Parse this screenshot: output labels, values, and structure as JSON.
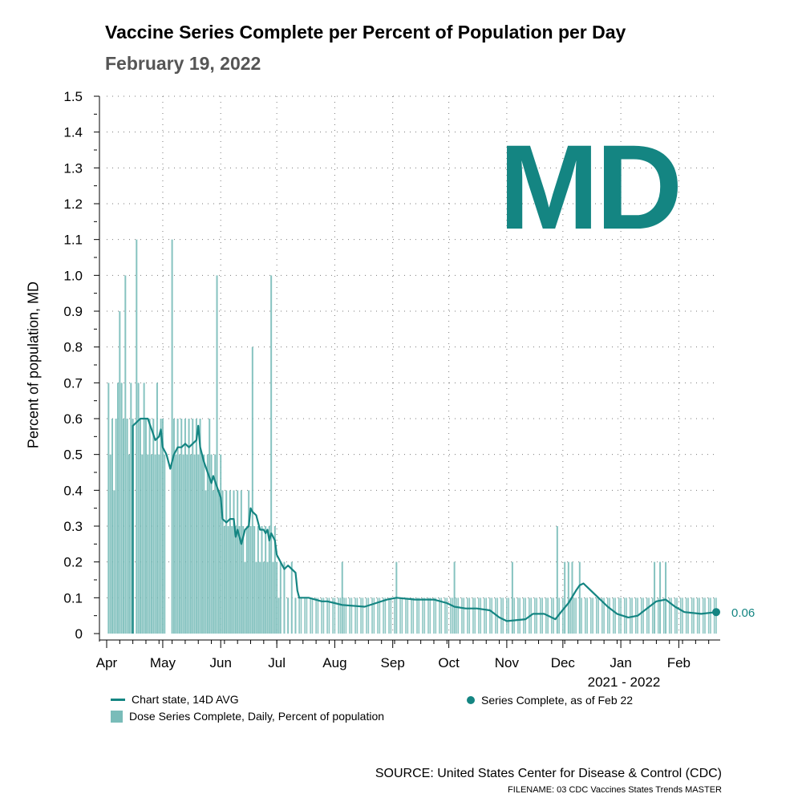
{
  "header": {
    "title": "Vaccine Series Complete per Percent of Population per Day",
    "subtitle": "February 19, 2022",
    "state": "MD"
  },
  "colors": {
    "accent": "#148582",
    "bar": "#79bcb9",
    "grid": "#7a7a7a"
  },
  "legend": {
    "avg_line": "Chart state, 14D AVG",
    "daily_bars": "Dose Series Complete, Daily, Percent of population",
    "latest_point": "Series Complete, as of Feb 22"
  },
  "footer": {
    "source": "SOURCE: United States Center for Disease & Control (CDC)",
    "filename": "FILENAME: 03 CDC Vaccines States Trends MASTER"
  },
  "chart_data": {
    "type": "bar",
    "title": "Vaccine Series Complete per Percent of Population per Day",
    "xlabel": "2021 - 2022",
    "ylabel": "Percent of population, MD",
    "ylim": [
      0,
      1.5
    ],
    "y_ticks": [
      "0",
      "0.1",
      "0.2",
      "0.3",
      "0.4",
      "0.5",
      "0.6",
      "0.7",
      "0.8",
      "0.9",
      "1.0",
      "1.1",
      "1.2",
      "1.3",
      "1.4",
      "1.5"
    ],
    "x_range_days": [
      0,
      326
    ],
    "month_ticks": [
      {
        "label": "Apr",
        "day": 0
      },
      {
        "label": "May",
        "day": 30
      },
      {
        "label": "Jun",
        "day": 61
      },
      {
        "label": "Jul",
        "day": 91
      },
      {
        "label": "Aug",
        "day": 122
      },
      {
        "label": "Sep",
        "day": 153
      },
      {
        "label": "Oct",
        "day": 183
      },
      {
        "label": "Nov",
        "day": 214
      },
      {
        "label": "Dec",
        "day": 244
      },
      {
        "label": "Jan",
        "day": 275
      },
      {
        "label": "Feb",
        "day": 306
      }
    ],
    "daily_series": {
      "name": "Dose Series Complete, Daily, Percent of population",
      "spikes": [
        {
          "day": 1,
          "value": 0.7
        },
        {
          "day": 2,
          "value": 0.5
        },
        {
          "day": 3,
          "value": 0.6
        },
        {
          "day": 4,
          "value": 0.4
        },
        {
          "day": 5,
          "value": 0.6
        },
        {
          "day": 6,
          "value": 0.7
        },
        {
          "day": 7,
          "value": 0.9
        },
        {
          "day": 8,
          "value": 0.7
        },
        {
          "day": 9,
          "value": 0.6
        },
        {
          "day": 10,
          "value": 1.0
        },
        {
          "day": 11,
          "value": 0.6
        },
        {
          "day": 12,
          "value": 0.5
        },
        {
          "day": 13,
          "value": 0.7
        },
        {
          "day": 14,
          "value": 0.6
        },
        {
          "day": 16,
          "value": 1.1
        },
        {
          "day": 17,
          "value": 0.7
        },
        {
          "day": 18,
          "value": 0.6
        },
        {
          "day": 19,
          "value": 0.5
        },
        {
          "day": 20,
          "value": 0.7
        },
        {
          "day": 21,
          "value": 0.6
        },
        {
          "day": 22,
          "value": 0.5
        },
        {
          "day": 23,
          "value": 0.6
        },
        {
          "day": 24,
          "value": 0.5
        },
        {
          "day": 25,
          "value": 0.6
        },
        {
          "day": 26,
          "value": 0.5
        },
        {
          "day": 27,
          "value": 0.7
        },
        {
          "day": 28,
          "value": 0.5
        },
        {
          "day": 29,
          "value": 0.6
        },
        {
          "day": 30,
          "value": 0.6
        },
        {
          "day": 31,
          "value": 0.5
        },
        {
          "day": 35,
          "value": 1.1
        },
        {
          "day": 36,
          "value": 0.6
        },
        {
          "day": 37,
          "value": 0.5
        },
        {
          "day": 38,
          "value": 0.6
        },
        {
          "day": 39,
          "value": 0.5
        },
        {
          "day": 40,
          "value": 0.6
        },
        {
          "day": 41,
          "value": 0.5
        },
        {
          "day": 42,
          "value": 0.6
        },
        {
          "day": 43,
          "value": 0.5
        },
        {
          "day": 44,
          "value": 0.6
        },
        {
          "day": 45,
          "value": 0.5
        },
        {
          "day": 46,
          "value": 0.6
        },
        {
          "day": 47,
          "value": 0.5
        },
        {
          "day": 48,
          "value": 0.6
        },
        {
          "day": 49,
          "value": 0.5
        },
        {
          "day": 50,
          "value": 0.6
        },
        {
          "day": 51,
          "value": 0.5
        },
        {
          "day": 52,
          "value": 0.5
        },
        {
          "day": 53,
          "value": 0.4
        },
        {
          "day": 54,
          "value": 0.5
        },
        {
          "day": 55,
          "value": 0.6
        },
        {
          "day": 56,
          "value": 0.5
        },
        {
          "day": 57,
          "value": 0.4
        },
        {
          "day": 58,
          "value": 0.5
        },
        {
          "day": 59,
          "value": 1.0
        },
        {
          "day": 60,
          "value": 0.4
        },
        {
          "day": 61,
          "value": 0.5
        },
        {
          "day": 62,
          "value": 0.4
        },
        {
          "day": 63,
          "value": 0.3
        },
        {
          "day": 64,
          "value": 0.4
        },
        {
          "day": 65,
          "value": 0.3
        },
        {
          "day": 66,
          "value": 0.4
        },
        {
          "day": 67,
          "value": 0.3
        },
        {
          "day": 68,
          "value": 0.4
        },
        {
          "day": 69,
          "value": 0.3
        },
        {
          "day": 70,
          "value": 0.4
        },
        {
          "day": 71,
          "value": 0.3
        },
        {
          "day": 72,
          "value": 0.4
        },
        {
          "day": 73,
          "value": 0.3
        },
        {
          "day": 74,
          "value": 0.2
        },
        {
          "day": 75,
          "value": 0.3
        },
        {
          "day": 76,
          "value": 0.4
        },
        {
          "day": 77,
          "value": 0.3
        },
        {
          "day": 78,
          "value": 0.8
        },
        {
          "day": 79,
          "value": 0.3
        },
        {
          "day": 80,
          "value": 0.2
        },
        {
          "day": 81,
          "value": 0.3
        },
        {
          "day": 82,
          "value": 0.2
        },
        {
          "day": 83,
          "value": 0.3
        },
        {
          "day": 84,
          "value": 0.2
        },
        {
          "day": 85,
          "value": 0.3
        },
        {
          "day": 86,
          "value": 0.2
        },
        {
          "day": 87,
          "value": 0.3
        },
        {
          "day": 88,
          "value": 1.0
        },
        {
          "day": 89,
          "value": 0.2
        },
        {
          "day": 90,
          "value": 0.3
        },
        {
          "day": 91,
          "value": 0.2
        },
        {
          "day": 92,
          "value": 0.1
        },
        {
          "day": 93,
          "value": 0.2
        },
        {
          "day": 95,
          "value": 0.2
        },
        {
          "day": 97,
          "value": 0.1
        },
        {
          "day": 99,
          "value": 0.2
        },
        {
          "day": 101,
          "value": 0.1
        },
        {
          "day": 126,
          "value": 0.2
        },
        {
          "day": 155,
          "value": 0.2
        },
        {
          "day": 186,
          "value": 0.2
        },
        {
          "day": 217,
          "value": 0.2
        },
        {
          "day": 241,
          "value": 0.3
        },
        {
          "day": 245,
          "value": 0.2
        },
        {
          "day": 247,
          "value": 0.2
        },
        {
          "day": 249,
          "value": 0.2
        },
        {
          "day": 253,
          "value": 0.2
        },
        {
          "day": 293,
          "value": 0.2
        },
        {
          "day": 296,
          "value": 0.2
        },
        {
          "day": 299,
          "value": 0.2
        }
      ],
      "baseline_low": 0.0,
      "baseline_high": 0.1,
      "baseline_days": [
        101,
        326
      ]
    },
    "avg_series": {
      "name": "Chart state, 14D AVG",
      "points": [
        {
          "day": 14,
          "value": 0.0
        },
        {
          "day": 14,
          "value": 0.58
        },
        {
          "day": 16,
          "value": 0.59
        },
        {
          "day": 18,
          "value": 0.6
        },
        {
          "day": 22,
          "value": 0.6
        },
        {
          "day": 24,
          "value": 0.57
        },
        {
          "day": 26,
          "value": 0.54
        },
        {
          "day": 28,
          "value": 0.55
        },
        {
          "day": 29,
          "value": 0.57
        },
        {
          "day": 30,
          "value": 0.52
        },
        {
          "day": 32,
          "value": 0.5
        },
        {
          "day": 34,
          "value": 0.46
        },
        {
          "day": 36,
          "value": 0.5
        },
        {
          "day": 38,
          "value": 0.52
        },
        {
          "day": 40,
          "value": 0.52
        },
        {
          "day": 42,
          "value": 0.53
        },
        {
          "day": 44,
          "value": 0.52
        },
        {
          "day": 46,
          "value": 0.53
        },
        {
          "day": 48,
          "value": 0.54
        },
        {
          "day": 49,
          "value": 0.58
        },
        {
          "day": 50,
          "value": 0.52
        },
        {
          "day": 52,
          "value": 0.48
        },
        {
          "day": 54,
          "value": 0.45
        },
        {
          "day": 56,
          "value": 0.42
        },
        {
          "day": 57,
          "value": 0.44
        },
        {
          "day": 59,
          "value": 0.41
        },
        {
          "day": 61,
          "value": 0.38
        },
        {
          "day": 62,
          "value": 0.32
        },
        {
          "day": 64,
          "value": 0.31
        },
        {
          "day": 66,
          "value": 0.32
        },
        {
          "day": 68,
          "value": 0.32
        },
        {
          "day": 69,
          "value": 0.27
        },
        {
          "day": 70,
          "value": 0.29
        },
        {
          "day": 72,
          "value": 0.25
        },
        {
          "day": 74,
          "value": 0.29
        },
        {
          "day": 76,
          "value": 0.3
        },
        {
          "day": 77,
          "value": 0.35
        },
        {
          "day": 78,
          "value": 0.34
        },
        {
          "day": 80,
          "value": 0.33
        },
        {
          "day": 82,
          "value": 0.29
        },
        {
          "day": 84,
          "value": 0.29
        },
        {
          "day": 85,
          "value": 0.28
        },
        {
          "day": 86,
          "value": 0.29
        },
        {
          "day": 87,
          "value": 0.26
        },
        {
          "day": 88,
          "value": 0.28
        },
        {
          "day": 90,
          "value": 0.26
        },
        {
          "day": 91,
          "value": 0.22
        },
        {
          "day": 93,
          "value": 0.2
        },
        {
          "day": 95,
          "value": 0.18
        },
        {
          "day": 97,
          "value": 0.19
        },
        {
          "day": 99,
          "value": 0.18
        },
        {
          "day": 101,
          "value": 0.17
        },
        {
          "day": 102,
          "value": 0.12
        },
        {
          "day": 103,
          "value": 0.1
        },
        {
          "day": 108,
          "value": 0.1
        },
        {
          "day": 115,
          "value": 0.09
        },
        {
          "day": 118,
          "value": 0.09
        },
        {
          "day": 122,
          "value": 0.085
        },
        {
          "day": 126,
          "value": 0.08
        },
        {
          "day": 138,
          "value": 0.075
        },
        {
          "day": 144,
          "value": 0.085
        },
        {
          "day": 150,
          "value": 0.095
        },
        {
          "day": 155,
          "value": 0.1
        },
        {
          "day": 165,
          "value": 0.095
        },
        {
          "day": 175,
          "value": 0.095
        },
        {
          "day": 182,
          "value": 0.085
        },
        {
          "day": 186,
          "value": 0.075
        },
        {
          "day": 192,
          "value": 0.07
        },
        {
          "day": 198,
          "value": 0.07
        },
        {
          "day": 205,
          "value": 0.065
        },
        {
          "day": 210,
          "value": 0.045
        },
        {
          "day": 214,
          "value": 0.035
        },
        {
          "day": 224,
          "value": 0.04
        },
        {
          "day": 228,
          "value": 0.055
        },
        {
          "day": 234,
          "value": 0.055
        },
        {
          "day": 240,
          "value": 0.04
        },
        {
          "day": 243,
          "value": 0.06
        },
        {
          "day": 247,
          "value": 0.085
        },
        {
          "day": 251,
          "value": 0.12
        },
        {
          "day": 253,
          "value": 0.135
        },
        {
          "day": 255,
          "value": 0.14
        },
        {
          "day": 258,
          "value": 0.125
        },
        {
          "day": 263,
          "value": 0.1
        },
        {
          "day": 268,
          "value": 0.075
        },
        {
          "day": 273,
          "value": 0.055
        },
        {
          "day": 279,
          "value": 0.045
        },
        {
          "day": 284,
          "value": 0.05
        },
        {
          "day": 289,
          "value": 0.07
        },
        {
          "day": 294,
          "value": 0.09
        },
        {
          "day": 299,
          "value": 0.095
        },
        {
          "day": 304,
          "value": 0.075
        },
        {
          "day": 309,
          "value": 0.06
        },
        {
          "day": 318,
          "value": 0.055
        },
        {
          "day": 326,
          "value": 0.06
        }
      ]
    },
    "latest_point": {
      "day": 326,
      "value": 0.06,
      "label": "0.06"
    }
  }
}
